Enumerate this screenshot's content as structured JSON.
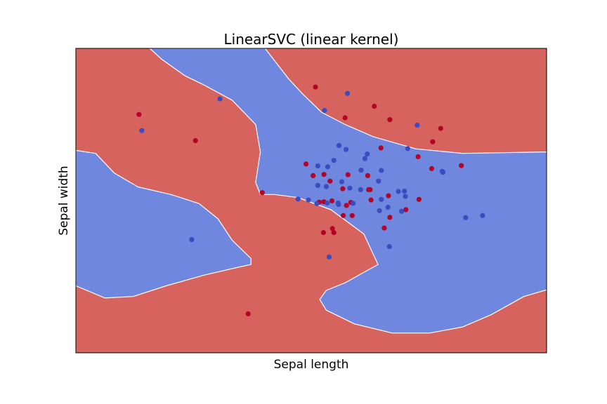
{
  "chart_data": {
    "type": "scatter",
    "title": "LinearSVC (linear kernel)",
    "xlabel": "Sepal length",
    "ylabel": "Sepal width",
    "xlim": [
      0,
      1
    ],
    "ylim": [
      0,
      1
    ],
    "show_ticks": false,
    "grid": false,
    "legend": "none",
    "colors": {
      "region_class_0": "#d6635e",
      "region_class_1": "#6f87de",
      "point_class_0": "#b40426",
      "point_class_1": "#3b4cc0"
    },
    "regions": [
      {
        "class": 0,
        "fill": "background"
      },
      {
        "class": 1,
        "polygon": [
          [
            0.157,
            1.0
          ],
          [
            0.402,
            1.0
          ],
          [
            0.422,
            0.96
          ],
          [
            0.452,
            0.9
          ],
          [
            0.482,
            0.85
          ],
          [
            0.522,
            0.79
          ],
          [
            0.572,
            0.75
          ],
          [
            0.632,
            0.71
          ],
          [
            0.722,
            0.67
          ],
          [
            0.822,
            0.655
          ],
          [
            1.0,
            0.66
          ],
          [
            1.0,
            0.207
          ],
          [
            0.952,
            0.185
          ],
          [
            0.882,
            0.125
          ],
          [
            0.822,
            0.085
          ],
          [
            0.752,
            0.065
          ],
          [
            0.672,
            0.065
          ],
          [
            0.592,
            0.095
          ],
          [
            0.532,
            0.14
          ],
          [
            0.518,
            0.175
          ],
          [
            0.532,
            0.205
          ],
          [
            0.572,
            0.23
          ],
          [
            0.642,
            0.29
          ],
          [
            0.612,
            0.39
          ],
          [
            0.542,
            0.47
          ],
          [
            0.472,
            0.51
          ],
          [
            0.422,
            0.52
          ],
          [
            0.392,
            0.52
          ],
          [
            0.382,
            0.56
          ],
          [
            0.392,
            0.66
          ],
          [
            0.382,
            0.75
          ],
          [
            0.332,
            0.83
          ],
          [
            0.272,
            0.88
          ],
          [
            0.232,
            0.91
          ],
          [
            0.182,
            0.965
          ]
        ]
      },
      {
        "class": 1,
        "polygon": [
          [
            0.0,
            0.665
          ],
          [
            0.042,
            0.655
          ],
          [
            0.082,
            0.59
          ],
          [
            0.132,
            0.545
          ],
          [
            0.202,
            0.52
          ],
          [
            0.262,
            0.49
          ],
          [
            0.302,
            0.44
          ],
          [
            0.332,
            0.37
          ],
          [
            0.372,
            0.31
          ],
          [
            0.372,
            0.29
          ],
          [
            0.342,
            0.28
          ],
          [
            0.272,
            0.255
          ],
          [
            0.192,
            0.22
          ],
          [
            0.122,
            0.185
          ],
          [
            0.062,
            0.18
          ],
          [
            0.0,
            0.22
          ]
        ]
      }
    ],
    "series": [
      {
        "class": 0,
        "points": [
          [
            0.134,
            0.783
          ],
          [
            0.254,
            0.697
          ],
          [
            0.509,
            0.873
          ],
          [
            0.572,
            0.772
          ],
          [
            0.634,
            0.81
          ],
          [
            0.667,
            0.766
          ],
          [
            0.775,
            0.737
          ],
          [
            0.758,
            0.693
          ],
          [
            0.648,
            0.673
          ],
          [
            0.727,
            0.644
          ],
          [
            0.756,
            0.605
          ],
          [
            0.819,
            0.615
          ],
          [
            0.489,
            0.62
          ],
          [
            0.504,
            0.582
          ],
          [
            0.527,
            0.586
          ],
          [
            0.54,
            0.564
          ],
          [
            0.578,
            0.585
          ],
          [
            0.62,
            0.582
          ],
          [
            0.622,
            0.536
          ],
          [
            0.625,
            0.536
          ],
          [
            0.729,
            0.504
          ],
          [
            0.701,
            0.47
          ],
          [
            0.667,
            0.445
          ],
          [
            0.655,
            0.41
          ],
          [
            0.584,
            0.494
          ],
          [
            0.575,
            0.484
          ],
          [
            0.544,
            0.499
          ],
          [
            0.527,
            0.496
          ],
          [
            0.517,
            0.495
          ],
          [
            0.568,
            0.451
          ],
          [
            0.567,
            0.539
          ],
          [
            0.526,
            0.395
          ],
          [
            0.545,
            0.408
          ],
          [
            0.548,
            0.395
          ],
          [
            0.587,
            0.451
          ],
          [
            0.627,
            0.502
          ],
          [
            0.664,
            0.516
          ],
          [
            0.396,
            0.526
          ],
          [
            0.366,
            0.128
          ]
        ]
      },
      {
        "class": 1,
        "points": [
          [
            0.306,
            0.834
          ],
          [
            0.14,
            0.73
          ],
          [
            0.577,
            0.852
          ],
          [
            0.528,
            0.796
          ],
          [
            0.725,
            0.748
          ],
          [
            0.705,
            0.671
          ],
          [
            0.559,
            0.681
          ],
          [
            0.574,
            0.668
          ],
          [
            0.619,
            0.653
          ],
          [
            0.614,
            0.638
          ],
          [
            0.548,
            0.632
          ],
          [
            0.535,
            0.611
          ],
          [
            0.514,
            0.614
          ],
          [
            0.606,
            0.6
          ],
          [
            0.649,
            0.599
          ],
          [
            0.643,
            0.564
          ],
          [
            0.582,
            0.541
          ],
          [
            0.565,
            0.562
          ],
          [
            0.532,
            0.546
          ],
          [
            0.514,
            0.55
          ],
          [
            0.605,
            0.536
          ],
          [
            0.685,
            0.53
          ],
          [
            0.698,
            0.531
          ],
          [
            0.7,
            0.514
          ],
          [
            0.663,
            0.478
          ],
          [
            0.692,
            0.465
          ],
          [
            0.778,
            0.596
          ],
          [
            0.78,
            0.593
          ],
          [
            0.512,
            0.49
          ],
          [
            0.534,
            0.492
          ],
          [
            0.558,
            0.487
          ],
          [
            0.494,
            0.502
          ],
          [
            0.472,
            0.505
          ],
          [
            0.649,
            0.504
          ],
          [
            0.645,
            0.467
          ],
          [
            0.589,
            0.491
          ],
          [
            0.557,
            0.492
          ],
          [
            0.246,
            0.372
          ],
          [
            0.538,
            0.315
          ],
          [
            0.864,
            0.451
          ],
          [
            0.828,
            0.444
          ],
          [
            0.666,
            0.349
          ]
        ]
      }
    ]
  }
}
